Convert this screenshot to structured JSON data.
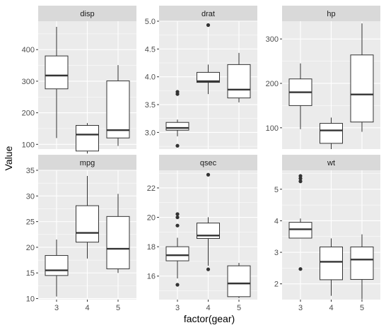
{
  "chart_data": {
    "type": "boxplot",
    "xlabel": "factor(gear)",
    "ylabel": "Value",
    "categories": [
      "3",
      "4",
      "5"
    ],
    "facet_scales": "free_y",
    "colors": {
      "panel_bg": "#ebebeb",
      "grid": "#ffffff",
      "strip_bg": "#d9d9d9",
      "box_fill": "#ffffff",
      "box_stroke": "#333333",
      "outlier": "#333333"
    },
    "facets": [
      {
        "name": "disp",
        "ylim": [
          85,
          490
        ],
        "yticks": [
          100,
          200,
          300,
          400
        ],
        "boxes": [
          {
            "category": "3",
            "min": 120.1,
            "q1": 275.8,
            "median": 318.0,
            "q3": 380.0,
            "max": 472.0,
            "outliers": []
          },
          {
            "category": "4",
            "min": 71.1,
            "q1": 78.9,
            "median": 130.9,
            "q3": 160.0,
            "max": 167.6,
            "outliers": []
          },
          {
            "category": "5",
            "min": 95.1,
            "q1": 120.3,
            "median": 145.0,
            "q3": 301.0,
            "max": 351.0,
            "outliers": []
          }
        ]
      },
      {
        "name": "drat",
        "ylim": [
          2.7,
          5.0
        ],
        "yticks": [
          3.0,
          3.5,
          4.0,
          4.5,
          5.0
        ],
        "boxes": [
          {
            "category": "3",
            "min": 2.93,
            "q1": 3.04,
            "median": 3.08,
            "q3": 3.18,
            "max": 3.23,
            "outliers": [
              2.76,
              3.69,
              3.73
            ]
          },
          {
            "category": "4",
            "min": 3.69,
            "q1": 3.9,
            "median": 3.92,
            "q3": 4.08,
            "max": 4.22,
            "outliers": [
              4.93
            ]
          },
          {
            "category": "5",
            "min": 3.54,
            "q1": 3.62,
            "median": 3.77,
            "q3": 4.22,
            "max": 4.43,
            "outliers": []
          }
        ]
      },
      {
        "name": "hp",
        "ylim": [
          52,
          340
        ],
        "yticks": [
          100,
          200,
          300
        ],
        "boxes": [
          {
            "category": "3",
            "min": 97,
            "q1": 150,
            "median": 180,
            "q3": 210,
            "max": 245,
            "outliers": []
          },
          {
            "category": "4",
            "min": 52,
            "q1": 65,
            "median": 94,
            "q3": 110,
            "max": 123,
            "outliers": []
          },
          {
            "category": "5",
            "min": 91,
            "q1": 113,
            "median": 175,
            "q3": 264,
            "max": 335,
            "outliers": []
          }
        ]
      },
      {
        "name": "mpg",
        "ylim": [
          9.8,
          35
        ],
        "yticks": [
          10,
          15,
          20,
          25,
          30,
          35
        ],
        "boxes": [
          {
            "category": "3",
            "min": 10.4,
            "q1": 14.5,
            "median": 15.5,
            "q3": 18.4,
            "max": 21.5,
            "outliers": []
          },
          {
            "category": "4",
            "min": 17.8,
            "q1": 21.0,
            "median": 22.8,
            "q3": 28.1,
            "max": 33.9,
            "outliers": []
          },
          {
            "category": "5",
            "min": 15.0,
            "q1": 15.8,
            "median": 19.7,
            "q3": 26.0,
            "max": 30.4,
            "outliers": []
          }
        ]
      },
      {
        "name": "qsec",
        "ylim": [
          14.4,
          23.2
        ],
        "yticks": [
          16,
          18,
          20,
          22
        ],
        "boxes": [
          {
            "category": "3",
            "min": 15.84,
            "q1": 17.04,
            "median": 17.42,
            "q3": 18.0,
            "max": 18.61,
            "outliers": [
              15.41,
              19.44,
              20.0,
              20.22
            ]
          },
          {
            "category": "4",
            "min": 16.7,
            "q1": 18.56,
            "median": 18.76,
            "q3": 19.61,
            "max": 20.01,
            "outliers": [
              16.46,
              22.9
            ]
          },
          {
            "category": "5",
            "min": 14.5,
            "q1": 14.6,
            "median": 15.5,
            "q3": 16.7,
            "max": 16.9,
            "outliers": []
          }
        ]
      },
      {
        "name": "wt",
        "ylim": [
          1.5,
          5.6
        ],
        "yticks": [
          2,
          3,
          4,
          5
        ],
        "boxes": [
          {
            "category": "3",
            "min": 3.44,
            "q1": 3.45,
            "median": 3.73,
            "q3": 3.95,
            "max": 4.07,
            "outliers": [
              2.47,
              5.25,
              5.34,
              5.42
            ]
          },
          {
            "category": "4",
            "min": 1.62,
            "q1": 2.13,
            "median": 2.7,
            "q3": 3.17,
            "max": 3.44,
            "outliers": []
          },
          {
            "category": "5",
            "min": 1.51,
            "q1": 2.14,
            "median": 2.77,
            "q3": 3.17,
            "max": 3.57,
            "outliers": []
          }
        ]
      }
    ]
  }
}
